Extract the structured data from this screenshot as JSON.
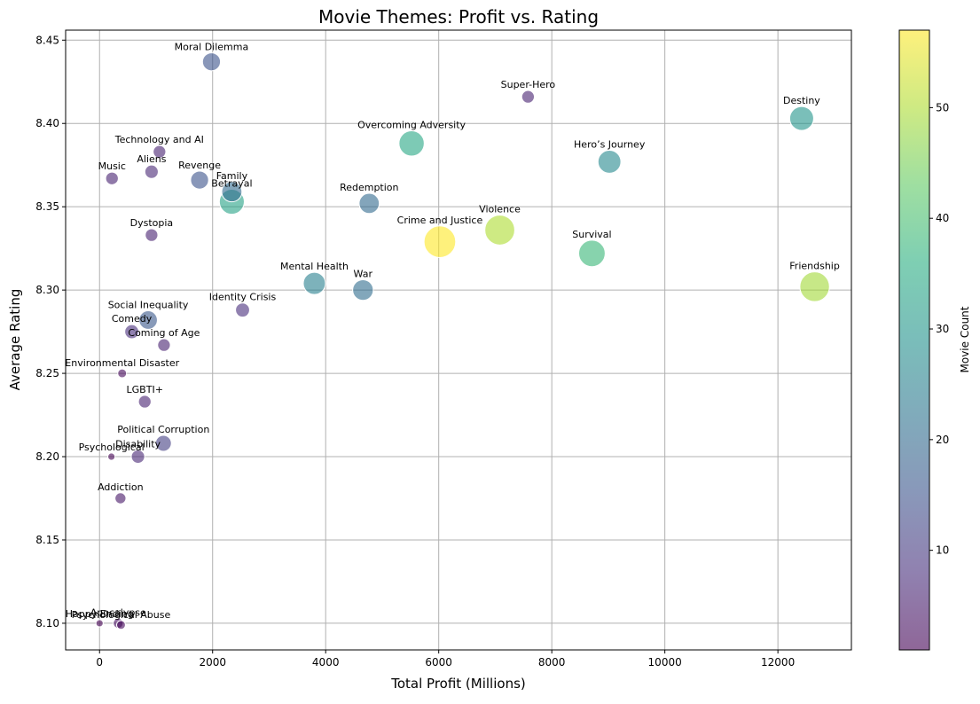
{
  "chart_data": {
    "type": "scatter",
    "title": "Movie Themes: Profit vs. Rating",
    "xlabel": "Total Profit (Millions)",
    "ylabel": "Average Rating",
    "xlim": [
      -600,
      13300
    ],
    "ylim": [
      8.084,
      8.456
    ],
    "xticks": [
      0,
      2000,
      4000,
      6000,
      8000,
      10000,
      12000
    ],
    "yticks": [
      8.1,
      8.15,
      8.2,
      8.25,
      8.3,
      8.35,
      8.4,
      8.45
    ],
    "grid": true,
    "colormap": "viridis",
    "colorbar": {
      "label": "Movie Count",
      "range": [
        1,
        57
      ],
      "ticks": [
        10,
        20,
        30,
        40,
        50
      ]
    },
    "encoding": {
      "size": "Movie Count",
      "color": "Movie Count"
    },
    "points": [
      {
        "name": "Moral Dilemma",
        "x": 1980,
        "y": 8.437,
        "count": 15
      },
      {
        "name": "Super-Hero",
        "x": 7580,
        "y": 8.416,
        "count": 6
      },
      {
        "name": "Destiny",
        "x": 12420,
        "y": 8.403,
        "count": 30
      },
      {
        "name": "Technology and AI",
        "x": 1060,
        "y": 8.383,
        "count": 6
      },
      {
        "name": "Overcoming Adversity",
        "x": 5520,
        "y": 8.388,
        "count": 34
      },
      {
        "name": "Hero’s Journey",
        "x": 9020,
        "y": 8.377,
        "count": 27
      },
      {
        "name": "Aliens",
        "x": 920,
        "y": 8.371,
        "count": 7
      },
      {
        "name": "Music",
        "x": 220,
        "y": 8.367,
        "count": 6
      },
      {
        "name": "Revenge",
        "x": 1770,
        "y": 8.366,
        "count": 15
      },
      {
        "name": "Family",
        "x": 2340,
        "y": 8.359,
        "count": 20
      },
      {
        "name": "Betrayal",
        "x": 2340,
        "y": 8.353,
        "count": 33
      },
      {
        "name": "Redemption",
        "x": 4770,
        "y": 8.352,
        "count": 20
      },
      {
        "name": "Violence",
        "x": 7080,
        "y": 8.336,
        "count": 50
      },
      {
        "name": "Dystopia",
        "x": 920,
        "y": 8.333,
        "count": 6
      },
      {
        "name": "Crime and Justice",
        "x": 6020,
        "y": 8.329,
        "count": 57
      },
      {
        "name": "Survival",
        "x": 8710,
        "y": 8.322,
        "count": 38
      },
      {
        "name": "Mental Health",
        "x": 3800,
        "y": 8.304,
        "count": 25
      },
      {
        "name": "Friendship",
        "x": 12650,
        "y": 8.302,
        "count": 49
      },
      {
        "name": "War",
        "x": 4660,
        "y": 8.3,
        "count": 21
      },
      {
        "name": "Social Inequality",
        "x": 860,
        "y": 8.282,
        "count": 16
      },
      {
        "name": "Identity Crisis",
        "x": 2530,
        "y": 8.288,
        "count": 8
      },
      {
        "name": "Comedy",
        "x": 570,
        "y": 8.275,
        "count": 8
      },
      {
        "name": "Coming of Age",
        "x": 1140,
        "y": 8.267,
        "count": 6
      },
      {
        "name": "Environmental Disaster",
        "x": 400,
        "y": 8.25,
        "count": 2
      },
      {
        "name": "LGBTI+",
        "x": 800,
        "y": 8.233,
        "count": 6
      },
      {
        "name": "Political Corruption",
        "x": 1130,
        "y": 8.208,
        "count": 11
      },
      {
        "name": "Disability",
        "x": 680,
        "y": 8.2,
        "count": 7
      },
      {
        "name": "Psychological",
        "x": 210,
        "y": 8.2,
        "count": 1
      },
      {
        "name": "Addiction",
        "x": 370,
        "y": 8.175,
        "count": 4
      },
      {
        "name": "Apocalypse",
        "x": 330,
        "y": 8.1,
        "count": 3
      },
      {
        "name": "Psychological Abuse",
        "x": 380,
        "y": 8.099,
        "count": 2
      },
      {
        "name": "Happy Ending",
        "x": 0,
        "y": 8.1,
        "count": 1
      }
    ]
  }
}
